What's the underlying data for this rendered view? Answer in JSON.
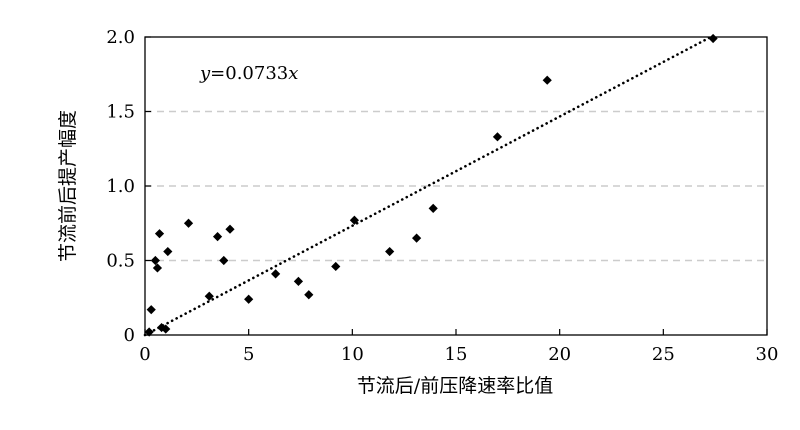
{
  "chart_data": {
    "type": "scatter",
    "title": "",
    "xlabel": "节流后/前压降速率比值",
    "ylabel": "节流前后提产幅度",
    "xlim": [
      0,
      30
    ],
    "ylim": [
      0,
      2.0
    ],
    "xticks": [
      0,
      5,
      10,
      15,
      20,
      25,
      30
    ],
    "yticks": [
      0,
      0.5,
      1.0,
      1.5,
      2.0
    ],
    "xtick_labels": [
      "0",
      "5",
      "10",
      "15",
      "20",
      "25",
      "30"
    ],
    "ytick_labels": [
      "0",
      "0.5",
      "1.0",
      "1.5",
      "2.0"
    ],
    "grid": "horizontal dashed",
    "marker_color": "#000000",
    "gridline_color": "#cccccc",
    "points": [
      {
        "x": 0.2,
        "y": 0.02
      },
      {
        "x": 0.3,
        "y": 0.17
      },
      {
        "x": 0.5,
        "y": 0.5
      },
      {
        "x": 0.6,
        "y": 0.45
      },
      {
        "x": 0.7,
        "y": 0.68
      },
      {
        "x": 0.8,
        "y": 0.05
      },
      {
        "x": 1.0,
        "y": 0.04
      },
      {
        "x": 1.1,
        "y": 0.56
      },
      {
        "x": 2.1,
        "y": 0.75
      },
      {
        "x": 3.1,
        "y": 0.26
      },
      {
        "x": 3.5,
        "y": 0.66
      },
      {
        "x": 3.8,
        "y": 0.5
      },
      {
        "x": 4.1,
        "y": 0.71
      },
      {
        "x": 5.0,
        "y": 0.24
      },
      {
        "x": 6.3,
        "y": 0.41
      },
      {
        "x": 7.4,
        "y": 0.36
      },
      {
        "x": 7.9,
        "y": 0.27
      },
      {
        "x": 9.2,
        "y": 0.46
      },
      {
        "x": 10.1,
        "y": 0.77
      },
      {
        "x": 11.8,
        "y": 0.56
      },
      {
        "x": 13.1,
        "y": 0.65
      },
      {
        "x": 13.9,
        "y": 0.85
      },
      {
        "x": 17.0,
        "y": 1.33
      },
      {
        "x": 19.4,
        "y": 1.71
      },
      {
        "x": 27.4,
        "y": 1.99
      }
    ],
    "trendline": {
      "type": "linear-through-origin",
      "slope": 0.0733,
      "x_range": [
        0,
        27.4
      ],
      "style": "dotted",
      "equation_parts": {
        "lhs": "y",
        "mid": "=0.0733",
        "rhs": "x"
      }
    }
  }
}
